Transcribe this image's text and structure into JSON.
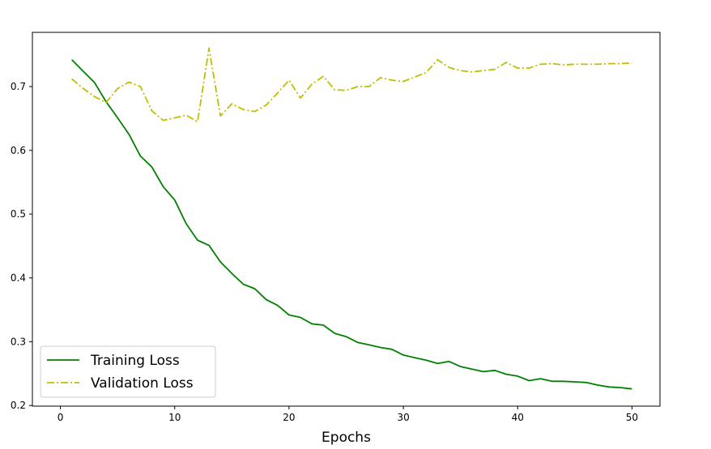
{
  "chart_data": {
    "type": "line",
    "title": "",
    "xlabel": "Epochs",
    "ylabel": "",
    "xlim": [
      -2.45,
      52.45
    ],
    "ylim": [
      0.199,
      0.785
    ],
    "xticks": [
      0,
      10,
      20,
      30,
      40,
      50
    ],
    "yticks": [
      0.2,
      0.3,
      0.4,
      0.5,
      0.6,
      0.7
    ],
    "grid": false,
    "legend_position": "lower-left",
    "x": [
      1,
      2,
      3,
      4,
      5,
      6,
      7,
      8,
      9,
      10,
      11,
      12,
      13,
      14,
      15,
      16,
      17,
      18,
      19,
      20,
      21,
      22,
      23,
      24,
      25,
      26,
      27,
      28,
      29,
      30,
      31,
      32,
      33,
      34,
      35,
      36,
      37,
      38,
      39,
      40,
      41,
      42,
      43,
      44,
      45,
      46,
      47,
      48,
      49,
      50
    ],
    "series": [
      {
        "name": "Training Loss",
        "color": "#008000",
        "style": "solid",
        "values": [
          0.742,
          0.724,
          0.706,
          0.676,
          0.651,
          0.625,
          0.591,
          0.574,
          0.543,
          0.522,
          0.485,
          0.459,
          0.451,
          0.425,
          0.407,
          0.39,
          0.383,
          0.366,
          0.357,
          0.342,
          0.338,
          0.328,
          0.326,
          0.313,
          0.308,
          0.299,
          0.295,
          0.291,
          0.288,
          0.279,
          0.275,
          0.271,
          0.266,
          0.269,
          0.261,
          0.257,
          0.253,
          0.255,
          0.249,
          0.246,
          0.239,
          0.242,
          0.238,
          0.238,
          0.237,
          0.236,
          0.232,
          0.229,
          0.228,
          0.226
        ]
      },
      {
        "name": "Validation Loss",
        "color": "#bfbf00",
        "style": "dashdot",
        "values": [
          0.712,
          0.697,
          0.684,
          0.675,
          0.697,
          0.707,
          0.7,
          0.662,
          0.647,
          0.651,
          0.655,
          0.645,
          0.76,
          0.654,
          0.673,
          0.664,
          0.661,
          0.671,
          0.69,
          0.71,
          0.682,
          0.704,
          0.716,
          0.695,
          0.694,
          0.7,
          0.7,
          0.714,
          0.71,
          0.708,
          0.715,
          0.722,
          0.742,
          0.73,
          0.725,
          0.723,
          0.725,
          0.727,
          0.738,
          0.729,
          0.729,
          0.735,
          0.736,
          0.734,
          0.735,
          0.735,
          0.735,
          0.736,
          0.736,
          0.737
        ]
      }
    ]
  }
}
